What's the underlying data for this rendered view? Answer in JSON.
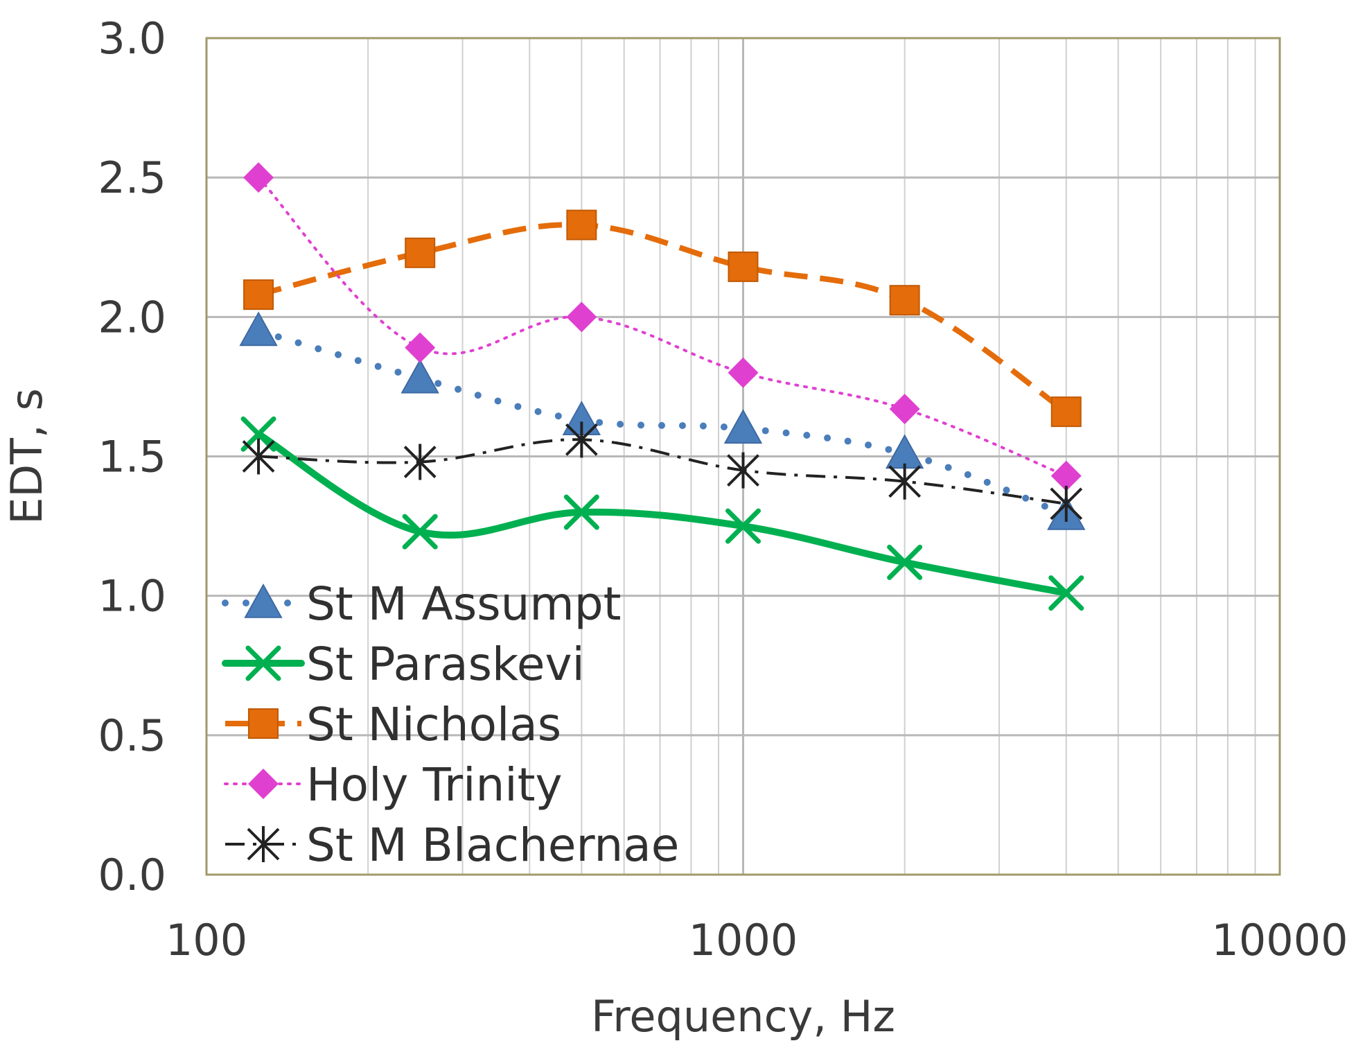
{
  "chart_data": {
    "type": "line",
    "x_scale": "log",
    "xlabel": "Frequency, Hz",
    "ylabel": "EDT, s",
    "xlim": [
      100,
      10000
    ],
    "ylim": [
      0,
      3.0
    ],
    "x_ticks": [
      100,
      1000,
      10000
    ],
    "x_tick_labels": [
      "100",
      "1000",
      "10000"
    ],
    "y_ticks": [
      0,
      0.5,
      1.0,
      1.5,
      2.0,
      2.5,
      3.0
    ],
    "y_tick_labels": [
      "0.0",
      "0.5",
      "1.0",
      "1.5",
      "2.0",
      "2.5",
      "3.0"
    ],
    "grid": true,
    "legend_position": "bottom-left",
    "x": [
      125,
      250,
      500,
      1000,
      2000,
      4000
    ],
    "series": [
      {
        "name": "St M Assumpt",
        "values": [
          1.95,
          1.78,
          1.63,
          1.6,
          1.51,
          1.29
        ],
        "color": "#4a7ebb",
        "marker": "triangle",
        "dash": "dot"
      },
      {
        "name": "St Paraskevi",
        "values": [
          1.58,
          1.23,
          1.3,
          1.25,
          1.12,
          1.01
        ],
        "color": "#00b050",
        "marker": "x",
        "dash": "solid"
      },
      {
        "name": "St Nicholas",
        "values": [
          2.08,
          2.23,
          2.33,
          2.18,
          2.06,
          1.66
        ],
        "color": "#e46c0a",
        "marker": "square",
        "dash": "dash"
      },
      {
        "name": "Holy Trinity",
        "values": [
          2.5,
          1.89,
          2.0,
          1.8,
          1.67,
          1.43
        ],
        "color": "#e040d0",
        "marker": "diamond",
        "dash": "sparse-dot"
      },
      {
        "name": "St M Blachernae",
        "values": [
          1.5,
          1.48,
          1.56,
          1.45,
          1.41,
          1.33
        ],
        "color": "#222222",
        "marker": "asterisk",
        "dash": "dash-dot"
      }
    ]
  }
}
